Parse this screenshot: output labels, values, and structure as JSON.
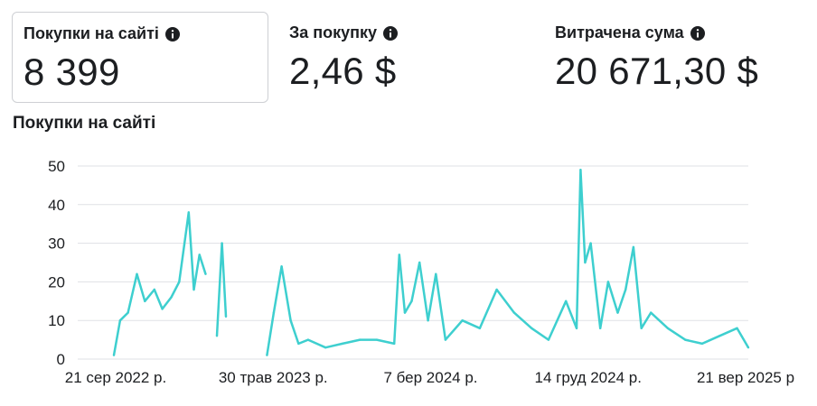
{
  "metrics": [
    {
      "label": "Покупки на сайті",
      "value": "8 399",
      "icon": "info-icon"
    },
    {
      "label": "За покупку",
      "value": "2,46 $",
      "icon": "info-icon"
    },
    {
      "label": "Витрачена сума",
      "value": "20 671,30 $",
      "icon": "info-icon"
    }
  ],
  "chart_title": "Покупки на сайті",
  "colors": {
    "series": "#3ecfcf",
    "grid": "#dfe1e5",
    "text": "#1c1e21"
  },
  "chart_data": {
    "type": "line",
    "title": "Покупки на сайті",
    "xlabel": "",
    "ylabel": "",
    "ylim": [
      0,
      50
    ],
    "yticks": [
      0,
      10,
      20,
      30,
      40,
      50
    ],
    "xtick_labels": [
      "21 сер 2022 р.",
      "30 трав 2023 р.",
      "7 бер 2024 р.",
      "14 груд 2024 р.",
      "21 вер 2025 р"
    ],
    "grid": true,
    "legend": "none",
    "segments": [
      {
        "x": [
          "2022-08-21",
          "2022-09-01",
          "2022-09-15",
          "2022-10-01",
          "2022-10-15",
          "2022-11-01",
          "2022-11-15",
          "2022-12-01",
          "2022-12-15",
          "2023-01-01",
          "2023-01-10",
          "2023-01-20",
          "2023-01-31"
        ],
        "y": [
          1,
          10,
          12,
          22,
          15,
          18,
          13,
          16,
          20,
          38,
          18,
          27,
          22
        ]
      },
      {
        "x": [
          "2023-02-20",
          "2023-03-01",
          "2023-03-08"
        ],
        "y": [
          6,
          30,
          11
        ]
      },
      {
        "x": [
          "2023-05-20",
          "2023-06-01",
          "2023-06-15",
          "2023-07-01",
          "2023-07-15",
          "2023-08-01",
          "2023-09-01",
          "2023-10-01",
          "2023-11-01",
          "2023-12-01",
          "2024-01-01",
          "2024-01-10",
          "2024-01-20",
          "2024-02-01",
          "2024-02-15",
          "2024-03-01",
          "2024-03-15",
          "2024-04-01",
          "2024-05-01",
          "2024-06-01",
          "2024-07-01",
          "2024-08-01",
          "2024-09-01",
          "2024-10-01",
          "2024-11-01",
          "2024-11-20",
          "2024-11-27",
          "2024-12-05",
          "2024-12-15",
          "2025-01-01",
          "2025-01-15",
          "2025-02-01",
          "2025-02-15",
          "2025-03-01",
          "2025-03-15",
          "2025-04-01",
          "2025-05-01",
          "2025-06-01",
          "2025-07-01",
          "2025-08-01",
          "2025-09-01",
          "2025-09-21"
        ],
        "y": [
          1,
          12,
          24,
          10,
          4,
          5,
          3,
          4,
          5,
          5,
          4,
          27,
          12,
          15,
          25,
          10,
          22,
          5,
          10,
          8,
          18,
          12,
          8,
          5,
          15,
          8,
          49,
          25,
          30,
          8,
          20,
          12,
          18,
          29,
          8,
          12,
          8,
          5,
          4,
          6,
          8,
          3
        ]
      }
    ]
  }
}
